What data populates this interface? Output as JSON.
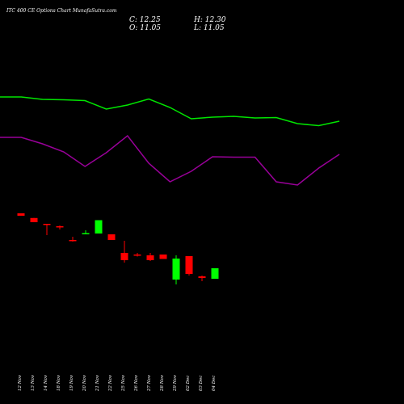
{
  "title": "ITC 400 CE Options Chart MunafaSutra.com",
  "ohlc": {
    "c_label": "C: 12.25",
    "h_label": "H: 12.30",
    "o_label": "O: 11.05",
    "l_label": "L: 11.05"
  },
  "colors": {
    "background": "#000000",
    "bull": "#00ff00",
    "bear": "#ff0000",
    "line_upper": "#00e600",
    "line_lower": "#990099",
    "text": "#ffffff"
  },
  "chart_data": {
    "type": "candlestick",
    "categories": [
      "12 Nov",
      "13 Nov",
      "14 Nov",
      "18 Nov",
      "19 Nov",
      "20 Nov",
      "21 Nov",
      "22 Nov",
      "25 Nov",
      "26 Nov",
      "27 Nov",
      "28 Nov",
      "29 Nov",
      "02 Dec",
      "03 Dec",
      "04 Dec"
    ],
    "candles": [
      {
        "o": 36.0,
        "h": 36.0,
        "l": 33.0,
        "c": 33.0
      },
      {
        "o": 30.2,
        "h": 30.2,
        "l": 25.0,
        "c": 25.0
      },
      {
        "o": 23.0,
        "h": 23.0,
        "l": 9.0,
        "c": 22.0
      },
      {
        "o": 20.0,
        "h": 21.0,
        "l": 16.0,
        "c": 19.0
      },
      {
        "o": 3.0,
        "h": 7.0,
        "l": 1.0,
        "c": 2.0
      },
      {
        "o": 10.0,
        "h": 15.0,
        "l": 10.0,
        "c": 11.5
      },
      {
        "o": 11.0,
        "h": 27.5,
        "l": 11.0,
        "c": 27.5
      },
      {
        "o": 10.0,
        "h": 10.0,
        "l": 3.0,
        "c": 3.0
      },
      {
        "o": -13.0,
        "h": 2.0,
        "l": -25.0,
        "c": -22.0
      },
      {
        "o": -15.0,
        "h": -13.0,
        "l": -17.5,
        "c": -15.5
      },
      {
        "o": -16.0,
        "h": -13.0,
        "l": -23.0,
        "c": -22.0
      },
      {
        "o": -15.0,
        "h": -15.0,
        "l": -20.5,
        "c": -20.5
      },
      {
        "o": -46.0,
        "h": -16.0,
        "l": -52.0,
        "c": -20.0
      },
      {
        "o": -17.0,
        "h": -17.0,
        "l": -41.0,
        "c": -39.0
      },
      {
        "o": -42.0,
        "h": -41.0,
        "l": -48.0,
        "c": -44.0
      },
      {
        "o": -45.0,
        "h": -32.0,
        "l": -45.0,
        "c": -32.0
      }
    ],
    "lines": [
      {
        "color": "upper",
        "x": [
          0,
          1,
          2,
          3,
          4,
          5,
          6,
          7,
          8,
          9,
          10,
          11,
          12,
          13,
          14,
          15,
          16
        ],
        "y": [
          190,
          190,
          187,
          186.5,
          185.5,
          175,
          180,
          187.5,
          177,
          163,
          165,
          166,
          164,
          164.5,
          157,
          154.5,
          160
        ]
      },
      {
        "color": "lower",
        "x": [
          0,
          1,
          2,
          3,
          4,
          5,
          6,
          7,
          8,
          9,
          10,
          11,
          12,
          13,
          14,
          15,
          16
        ],
        "y": [
          140,
          140,
          132,
          122,
          104,
          121,
          142,
          108,
          85,
          98,
          116,
          115.5,
          115.5,
          85,
          81,
          102,
          119
        ]
      }
    ]
  }
}
